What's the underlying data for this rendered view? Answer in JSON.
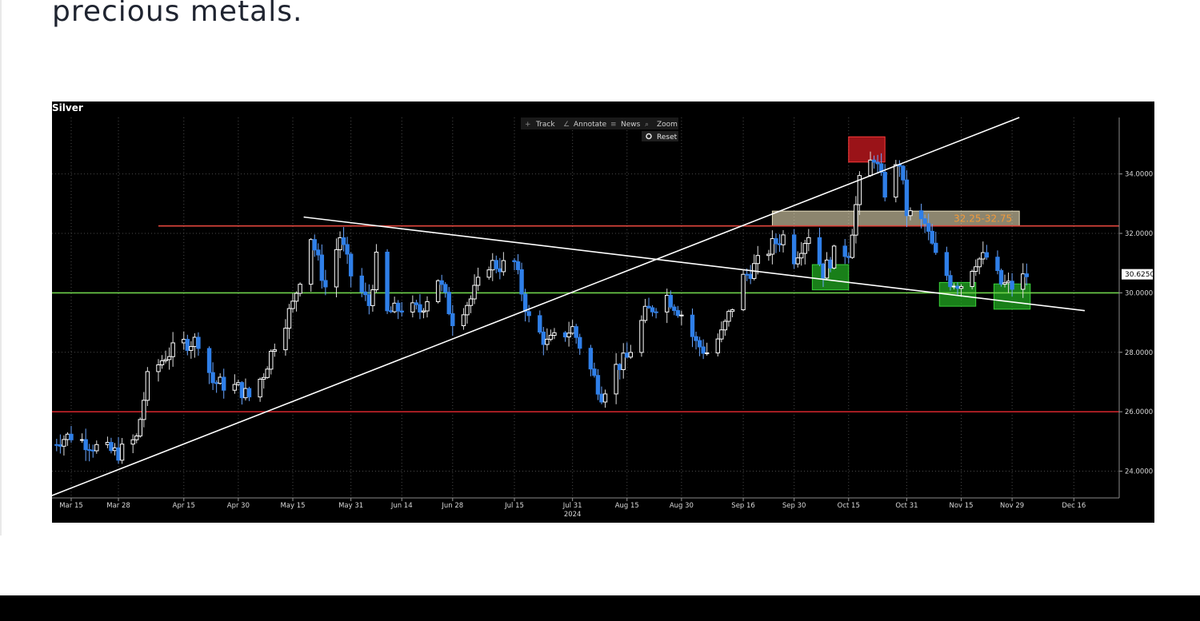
{
  "page": {
    "heading": "precious metals."
  },
  "chart_toolbar": {
    "buttons": [
      {
        "icon": "track-icon",
        "label": "Track"
      },
      {
        "icon": "annotate-icon",
        "label": "Annotate"
      },
      {
        "icon": "news-icon",
        "label": "News"
      },
      {
        "icon": "zoom-icon",
        "label": "Zoom"
      }
    ],
    "reset_label": "Reset"
  },
  "colors": {
    "background": "#000000",
    "bull_candle": "#ffffff",
    "bear_candle": "#2f7fe8",
    "resistance_line": "#e0463c",
    "support_line": "#6ed24a",
    "trend_line": "#ffffff",
    "green_zone": "#22aa22",
    "red_zone": "#c0181e",
    "band_zone": "#fff3c8",
    "band_label": "#f29a3a"
  },
  "chart_data": {
    "type": "candlestick",
    "title": "Silver",
    "x_ticks": [
      "Mar 15",
      "Mar 28",
      "Apr 15",
      "Apr 30",
      "May 15",
      "May 31",
      "Jun 14",
      "Jun 28",
      "Jul 15",
      "Jul 31",
      "Aug 15",
      "Aug 30",
      "Sep 16",
      "Sep 30",
      "Oct 15",
      "Oct 31",
      "Nov 15",
      "Nov 29",
      "Dec 16"
    ],
    "x_year_label": "2024",
    "y_ticks": [
      "34.0000",
      "32.0000",
      "30.0000",
      "28.0000",
      "26.0000",
      "24.0000"
    ],
    "ylim": [
      23.1,
      35.9
    ],
    "last_price": "30.6250",
    "grid": true,
    "horizontal_lines": [
      {
        "value": 32.25,
        "color": "red-orange",
        "start": "Apr 8"
      },
      {
        "value": 30.0,
        "color": "green"
      },
      {
        "value": 26.0,
        "color": "red"
      }
    ],
    "trend_lines": [
      {
        "from": [
          "Mar 8",
          23.1
        ],
        "to": [
          "Dec 1",
          35.9
        ]
      },
      {
        "from": [
          "May 18",
          32.55
        ],
        "to": [
          "Dec 19",
          29.4
        ]
      }
    ],
    "zones": [
      {
        "label": "32.25-32.75",
        "y_range": [
          32.25,
          32.75
        ],
        "x_range": [
          "Sep 24",
          "Dec 1"
        ],
        "kind": "band"
      },
      {
        "label": "",
        "y_range": [
          34.4,
          35.25
        ],
        "x_range": [
          "Oct 15",
          "Oct 25"
        ],
        "kind": "red"
      },
      {
        "label": "",
        "y_range": [
          30.1,
          30.95
        ],
        "x_range": [
          "Oct 5",
          "Oct 15"
        ],
        "kind": "green"
      },
      {
        "label": "",
        "y_range": [
          29.55,
          30.35
        ],
        "x_range": [
          "Nov 9",
          "Nov 19"
        ],
        "kind": "green"
      },
      {
        "label": "",
        "y_range": [
          29.45,
          30.3
        ],
        "x_range": [
          "Nov 24",
          "Dec 4"
        ],
        "kind": "green"
      }
    ],
    "price_path": [
      [
        "Mar 8",
        24.9
      ],
      [
        "Mar 15",
        25.2
      ],
      [
        "Mar 22",
        24.8
      ],
      [
        "Mar 28",
        24.6
      ],
      [
        "Apr 2",
        25.1
      ],
      [
        "Apr 5",
        27.1
      ],
      [
        "Apr 10",
        27.9
      ],
      [
        "Apr 15",
        28.3
      ],
      [
        "Apr 19",
        28.4
      ],
      [
        "Apr 23",
        27.0
      ],
      [
        "Apr 30",
        26.8
      ],
      [
        "May 3",
        26.5
      ],
      [
        "May 7",
        27.3
      ],
      [
        "May 10",
        28.3
      ],
      [
        "May 15",
        29.6
      ],
      [
        "May 20",
        31.9
      ],
      [
        "May 24",
        30.2
      ],
      [
        "May 28",
        31.9
      ],
      [
        "May 31",
        30.6
      ],
      [
        "Jun 5",
        29.6
      ],
      [
        "Jun 7",
        31.1
      ],
      [
        "Jun 10",
        29.3
      ],
      [
        "Jun 14",
        29.5
      ],
      [
        "Jun 19",
        29.4
      ],
      [
        "Jun 24",
        30.5
      ],
      [
        "Jun 28",
        29.1
      ],
      [
        "Jul 3",
        29.8
      ],
      [
        "Jul 8",
        31.0
      ],
      [
        "Jul 11",
        30.9
      ],
      [
        "Jul 15",
        31.0
      ],
      [
        "Jul 19",
        29.1
      ],
      [
        "Jul 24",
        28.3
      ],
      [
        "Jul 31",
        28.8
      ],
      [
        "Aug 5",
        27.4
      ],
      [
        "Aug 8",
        26.6
      ],
      [
        "Aug 12",
        27.5
      ],
      [
        "Aug 15",
        27.8
      ],
      [
        "Aug 20",
        29.3
      ],
      [
        "Aug 26",
        29.9
      ],
      [
        "Aug 30",
        29.3
      ],
      [
        "Sep 3",
        28.3
      ],
      [
        "Sep 6",
        28.0
      ],
      [
        "Sep 10",
        28.6
      ],
      [
        "Sep 16",
        30.5
      ],
      [
        "Sep 20",
        31.0
      ],
      [
        "Sep 24",
        31.6
      ],
      [
        "Sep 27",
        31.9
      ],
      [
        "Sep 30",
        31.2
      ],
      [
        "Oct 4",
        32.0
      ],
      [
        "Oct 8",
        30.7
      ],
      [
        "Oct 11",
        31.3
      ],
      [
        "Oct 15",
        31.4
      ],
      [
        "Oct 18",
        33.7
      ],
      [
        "Oct 22",
        34.6
      ],
      [
        "Oct 25",
        33.4
      ],
      [
        "Oct 29",
        34.4
      ],
      [
        "Oct 31",
        32.7
      ],
      [
        "Nov 5",
        32.3
      ],
      [
        "Nov 8",
        31.2
      ],
      [
        "Nov 12",
        30.4
      ],
      [
        "Nov 15",
        30.3
      ],
      [
        "Nov 19",
        31.1
      ],
      [
        "Nov 22",
        31.2
      ],
      [
        "Nov 26",
        30.3
      ],
      [
        "Nov 29",
        30.2
      ],
      [
        "Dec 3",
        30.6
      ]
    ]
  }
}
